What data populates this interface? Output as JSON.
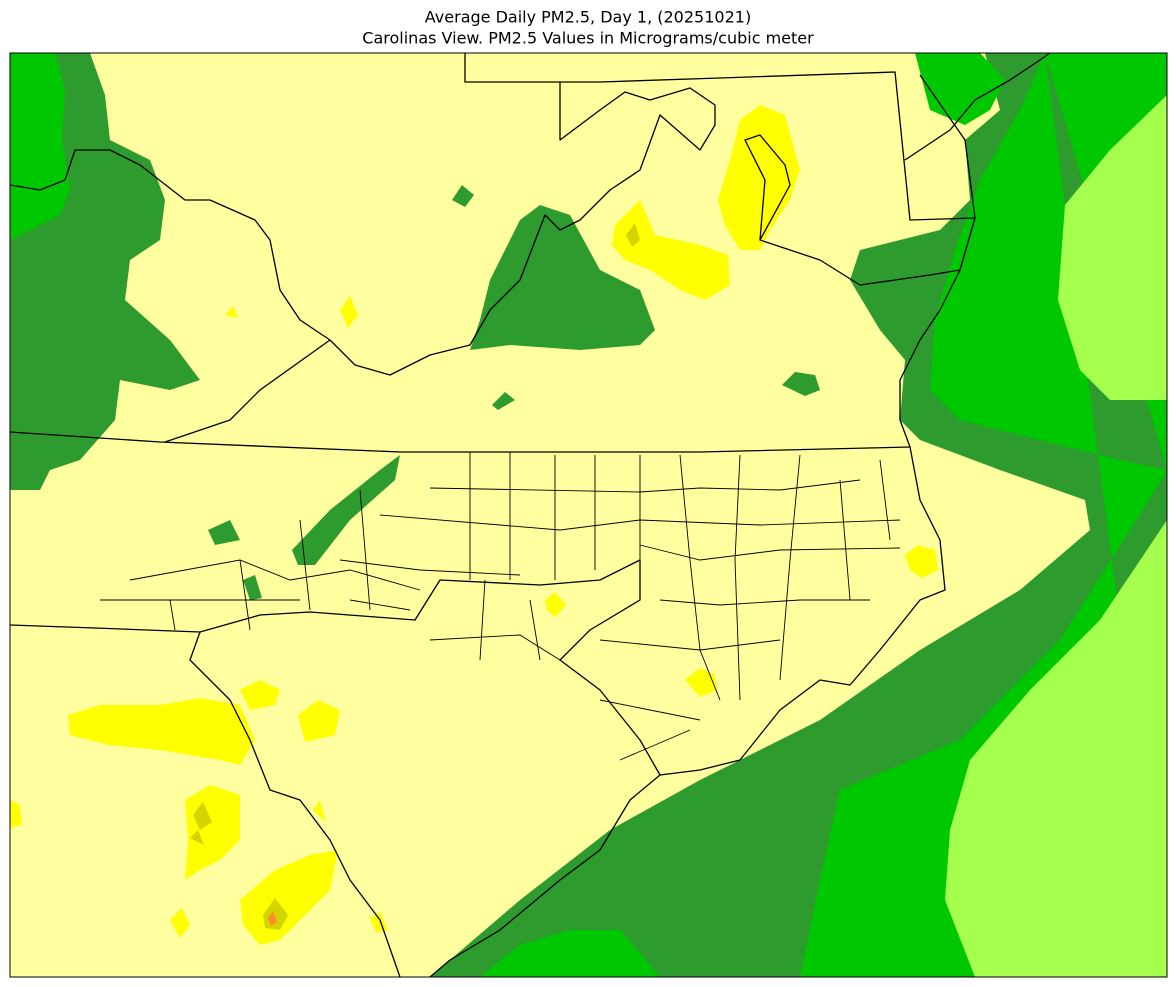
{
  "header": {
    "title": "Average Daily PM2.5, Day 1, (20251021)",
    "subtitle": "Carolinas View. PM2.5 Values in Micrograms/cubic meter"
  }
}
